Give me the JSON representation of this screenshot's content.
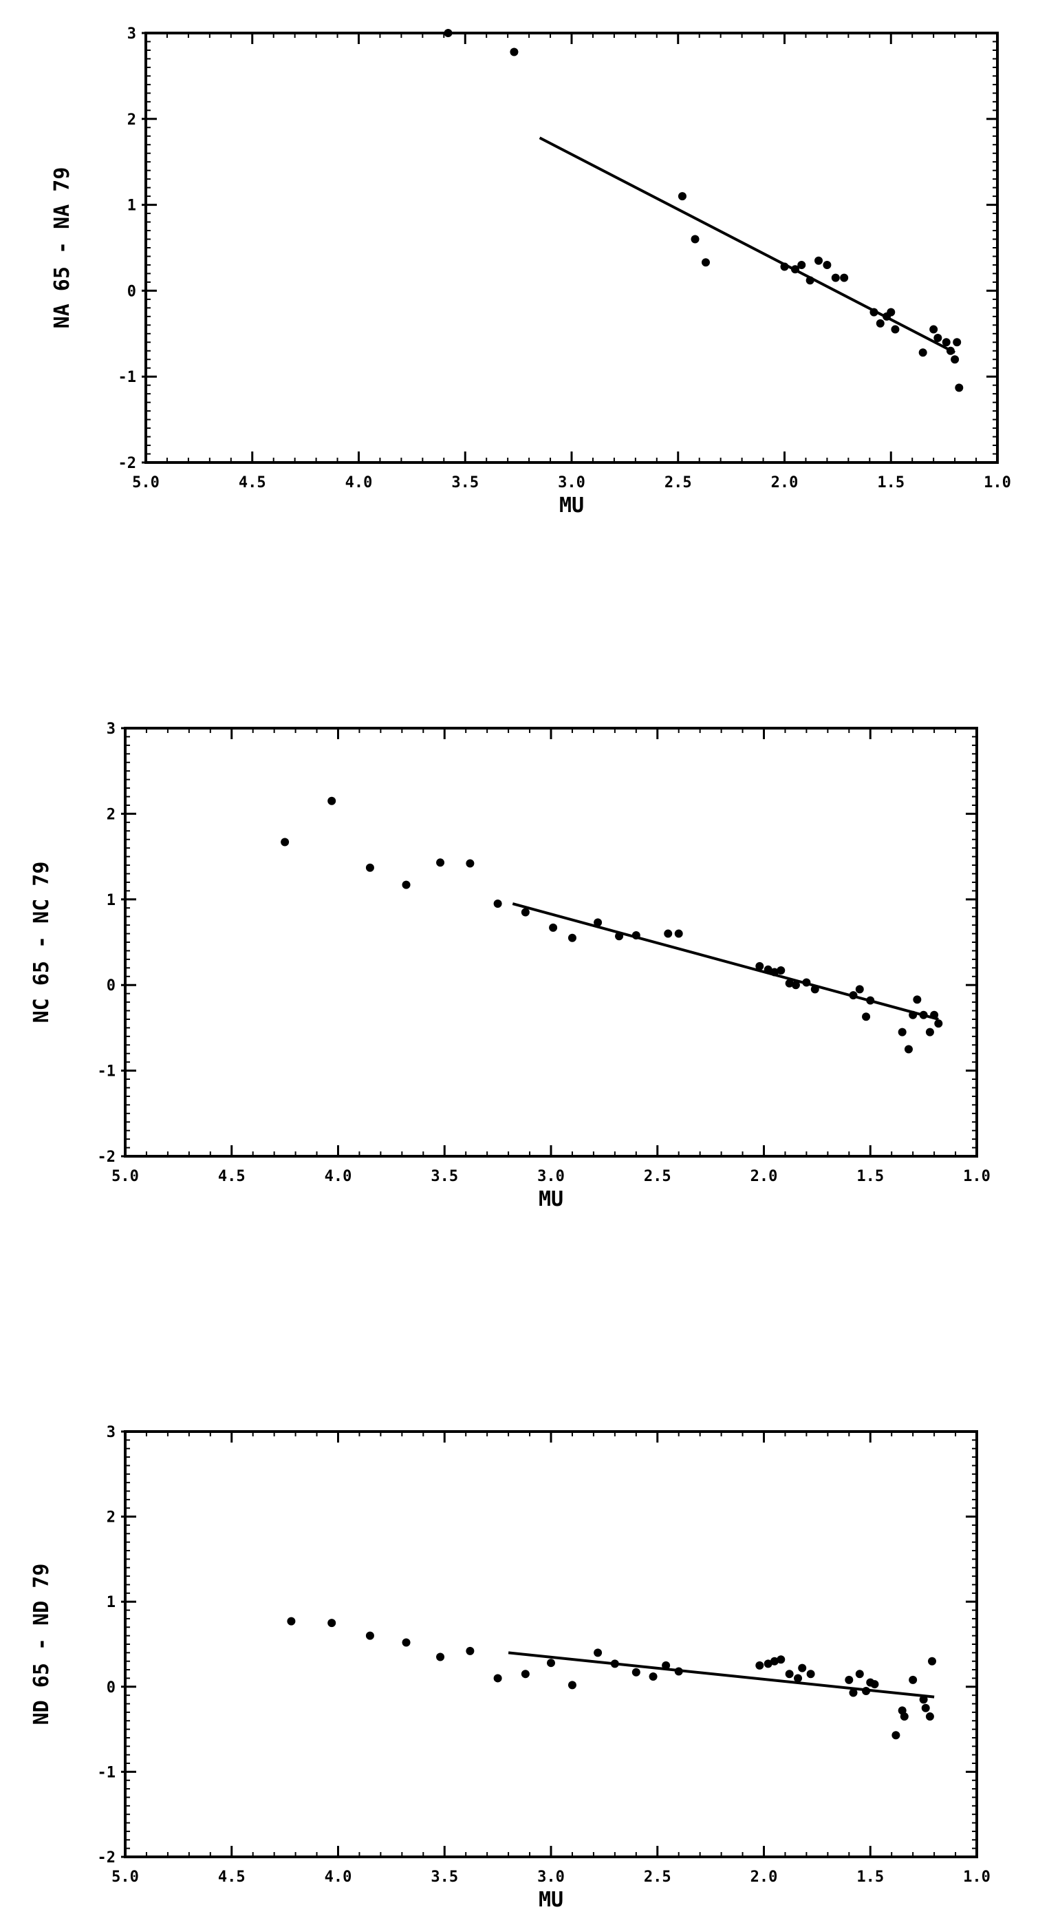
{
  "chart_data": [
    {
      "type": "scatter",
      "xlabel": "MU",
      "ylabel": "NA 65 - NA 79",
      "xlim": [
        5.0,
        1.0
      ],
      "ylim": [
        -2,
        3
      ],
      "x_ticks": [
        "5.0",
        "4.5",
        "4.0",
        "3.5",
        "3.0",
        "2.5",
        "2.0",
        "1.5",
        "1.0"
      ],
      "y_ticks": [
        "-2",
        "-1",
        "0",
        "1",
        "2",
        "3"
      ],
      "grid": false,
      "points": [
        [
          3.58,
          3.0
        ],
        [
          3.27,
          2.78
        ],
        [
          2.48,
          1.1
        ],
        [
          2.42,
          0.6
        ],
        [
          2.37,
          0.33
        ],
        [
          2.0,
          0.28
        ],
        [
          1.95,
          0.25
        ],
        [
          1.92,
          0.3
        ],
        [
          1.88,
          0.12
        ],
        [
          1.84,
          0.35
        ],
        [
          1.8,
          0.3
        ],
        [
          1.76,
          0.15
        ],
        [
          1.72,
          0.15
        ],
        [
          1.58,
          -0.25
        ],
        [
          1.55,
          -0.38
        ],
        [
          1.52,
          -0.3
        ],
        [
          1.5,
          -0.25
        ],
        [
          1.48,
          -0.45
        ],
        [
          1.35,
          -0.72
        ],
        [
          1.3,
          -0.45
        ],
        [
          1.28,
          -0.55
        ],
        [
          1.24,
          -0.6
        ],
        [
          1.22,
          -0.7
        ],
        [
          1.2,
          -0.8
        ],
        [
          1.19,
          -0.6
        ],
        [
          1.18,
          -1.13
        ]
      ],
      "fit_line": [
        [
          3.15,
          1.78
        ],
        [
          1.2,
          -0.72
        ]
      ]
    },
    {
      "type": "scatter",
      "xlabel": "MU",
      "ylabel": "NC 65 - NC 79",
      "xlim": [
        5.0,
        1.0
      ],
      "ylim": [
        -2,
        3
      ],
      "x_ticks": [
        "5.0",
        "4.5",
        "4.0",
        "3.5",
        "3.0",
        "2.5",
        "2.0",
        "1.5",
        "1.0"
      ],
      "y_ticks": [
        "-2",
        "-1",
        "0",
        "1",
        "2",
        "3"
      ],
      "grid": false,
      "points": [
        [
          4.25,
          1.67
        ],
        [
          4.03,
          2.15
        ],
        [
          3.85,
          1.37
        ],
        [
          3.68,
          1.17
        ],
        [
          3.52,
          1.43
        ],
        [
          3.38,
          1.42
        ],
        [
          3.25,
          0.95
        ],
        [
          3.12,
          0.85
        ],
        [
          2.99,
          0.67
        ],
        [
          2.9,
          0.55
        ],
        [
          2.78,
          0.73
        ],
        [
          2.68,
          0.57
        ],
        [
          2.6,
          0.58
        ],
        [
          2.45,
          0.6
        ],
        [
          2.4,
          0.6
        ],
        [
          2.02,
          0.22
        ],
        [
          1.98,
          0.18
        ],
        [
          1.95,
          0.15
        ],
        [
          1.92,
          0.17
        ],
        [
          1.88,
          0.02
        ],
        [
          1.85,
          0.0
        ],
        [
          1.8,
          0.03
        ],
        [
          1.76,
          -0.05
        ],
        [
          1.58,
          -0.12
        ],
        [
          1.55,
          -0.05
        ],
        [
          1.52,
          -0.37
        ],
        [
          1.5,
          -0.18
        ],
        [
          1.35,
          -0.55
        ],
        [
          1.32,
          -0.75
        ],
        [
          1.3,
          -0.35
        ],
        [
          1.28,
          -0.17
        ],
        [
          1.25,
          -0.35
        ],
        [
          1.22,
          -0.55
        ],
        [
          1.2,
          -0.35
        ],
        [
          1.18,
          -0.45
        ]
      ],
      "fit_line": [
        [
          3.18,
          0.95
        ],
        [
          1.18,
          -0.4
        ]
      ]
    },
    {
      "type": "scatter",
      "xlabel": "MU",
      "ylabel": "ND 65 - ND 79",
      "xlim": [
        5.0,
        1.0
      ],
      "ylim": [
        -2,
        3
      ],
      "x_ticks": [
        "5.0",
        "4.5",
        "4.0",
        "3.5",
        "3.0",
        "2.5",
        "2.0",
        "1.5",
        "1.0"
      ],
      "y_ticks": [
        "-2",
        "-1",
        "0",
        "1",
        "2",
        "3"
      ],
      "grid": false,
      "points": [
        [
          4.22,
          0.77
        ],
        [
          4.03,
          0.75
        ],
        [
          3.85,
          0.6
        ],
        [
          3.68,
          0.52
        ],
        [
          3.52,
          0.35
        ],
        [
          3.38,
          0.42
        ],
        [
          3.25,
          0.1
        ],
        [
          3.12,
          0.15
        ],
        [
          3.0,
          0.28
        ],
        [
          2.9,
          0.02
        ],
        [
          2.78,
          0.4
        ],
        [
          2.7,
          0.27
        ],
        [
          2.6,
          0.17
        ],
        [
          2.52,
          0.12
        ],
        [
          2.46,
          0.25
        ],
        [
          2.4,
          0.18
        ],
        [
          2.02,
          0.25
        ],
        [
          1.98,
          0.27
        ],
        [
          1.95,
          0.3
        ],
        [
          1.92,
          0.32
        ],
        [
          1.88,
          0.15
        ],
        [
          1.84,
          0.1
        ],
        [
          1.82,
          0.22
        ],
        [
          1.78,
          0.15
        ],
        [
          1.6,
          0.08
        ],
        [
          1.58,
          -0.07
        ],
        [
          1.55,
          0.15
        ],
        [
          1.52,
          -0.05
        ],
        [
          1.5,
          0.05
        ],
        [
          1.48,
          0.03
        ],
        [
          1.38,
          -0.57
        ],
        [
          1.35,
          -0.28
        ],
        [
          1.34,
          -0.35
        ],
        [
          1.3,
          0.08
        ],
        [
          1.25,
          -0.15
        ],
        [
          1.24,
          -0.25
        ],
        [
          1.22,
          -0.35
        ],
        [
          1.21,
          0.3
        ]
      ],
      "fit_line": [
        [
          3.2,
          0.4
        ],
        [
          1.2,
          -0.12
        ]
      ]
    }
  ]
}
